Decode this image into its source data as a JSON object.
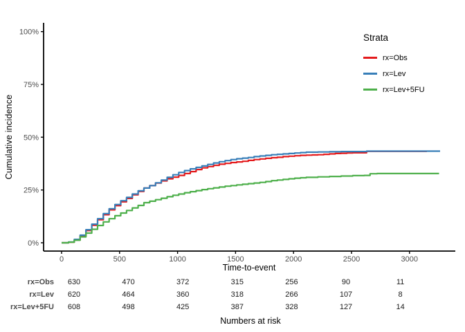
{
  "figure": {
    "y_axis_label": "Cumulative incidence",
    "x_axis_label": "Time-to-event",
    "risk_table_caption": "Numbers at risk"
  },
  "legend": {
    "title": "Strata",
    "items": [
      {
        "label": "rx=Obs",
        "color": "#E41A1C"
      },
      {
        "label": "rx=Lev",
        "color": "#377EB8"
      },
      {
        "label": "rx=Lev+5FU",
        "color": "#4DAF4A"
      }
    ]
  },
  "chart_data": {
    "type": "line",
    "step": true,
    "title": "",
    "xlabel": "Time-to-event",
    "ylabel": "Cumulative incidence",
    "xlim": [
      0,
      3300
    ],
    "ylim": [
      0,
      100
    ],
    "grid": false,
    "legend_position": "right-top",
    "axis_color": "#000000",
    "tick_label_color": "#4d4d4d",
    "xticks": [
      {
        "value": 0,
        "label": "0"
      },
      {
        "value": 500,
        "label": "500"
      },
      {
        "value": 1000,
        "label": "1000"
      },
      {
        "value": 1500,
        "label": "1500"
      },
      {
        "value": 2000,
        "label": "2000"
      },
      {
        "value": 2500,
        "label": "2500"
      },
      {
        "value": 3000,
        "label": "3000"
      }
    ],
    "yticks": [
      {
        "value": 0,
        "label": "0%"
      },
      {
        "value": 25,
        "label": "25%"
      },
      {
        "value": 50,
        "label": "50%"
      },
      {
        "value": 75,
        "label": "75%"
      },
      {
        "value": 100,
        "label": "100%"
      }
    ],
    "series": [
      {
        "name": "rx=Obs",
        "color": "#E41A1C",
        "points": [
          [
            0,
            0
          ],
          [
            60,
            0.3
          ],
          [
            110,
            1.3
          ],
          [
            160,
            3.2
          ],
          [
            210,
            5.8
          ],
          [
            260,
            8.3
          ],
          [
            310,
            10.9
          ],
          [
            360,
            13.3
          ],
          [
            410,
            15.6
          ],
          [
            460,
            17.6
          ],
          [
            510,
            19.4
          ],
          [
            560,
            21.0
          ],
          [
            610,
            22.7
          ],
          [
            660,
            24.3
          ],
          [
            710,
            25.9
          ],
          [
            760,
            27.1
          ],
          [
            810,
            28.3
          ],
          [
            860,
            29.3
          ],
          [
            910,
            30.3
          ],
          [
            960,
            31.1
          ],
          [
            1010,
            31.9
          ],
          [
            1060,
            32.8
          ],
          [
            1110,
            33.7
          ],
          [
            1160,
            34.7
          ],
          [
            1210,
            35.5
          ],
          [
            1260,
            36.1
          ],
          [
            1310,
            36.7
          ],
          [
            1360,
            37.2
          ],
          [
            1410,
            37.6
          ],
          [
            1460,
            38.0
          ],
          [
            1510,
            38.3
          ],
          [
            1560,
            38.6
          ],
          [
            1610,
            39.0
          ],
          [
            1660,
            39.4
          ],
          [
            1710,
            39.7
          ],
          [
            1760,
            40.0
          ],
          [
            1810,
            40.3
          ],
          [
            1860,
            40.5
          ],
          [
            1910,
            40.8
          ],
          [
            1960,
            41.0
          ],
          [
            2010,
            41.2
          ],
          [
            2060,
            41.4
          ],
          [
            2110,
            41.5
          ],
          [
            2160,
            41.6
          ],
          [
            2210,
            41.7
          ],
          [
            2260,
            41.9
          ],
          [
            2310,
            42.1
          ],
          [
            2360,
            42.3
          ],
          [
            2410,
            42.4
          ],
          [
            2460,
            42.5
          ],
          [
            2510,
            42.6
          ],
          [
            2630,
            43.3
          ],
          [
            3150,
            43.3
          ]
        ]
      },
      {
        "name": "rx=Lev",
        "color": "#377EB8",
        "points": [
          [
            0,
            0
          ],
          [
            60,
            0.4
          ],
          [
            110,
            1.6
          ],
          [
            160,
            3.6
          ],
          [
            210,
            6.2
          ],
          [
            260,
            8.8
          ],
          [
            310,
            11.4
          ],
          [
            360,
            13.8
          ],
          [
            410,
            16.1
          ],
          [
            460,
            18.1
          ],
          [
            510,
            19.9
          ],
          [
            560,
            21.5
          ],
          [
            610,
            23.1
          ],
          [
            660,
            24.6
          ],
          [
            710,
            25.9
          ],
          [
            760,
            27.1
          ],
          [
            810,
            28.4
          ],
          [
            860,
            29.7
          ],
          [
            910,
            31.0
          ],
          [
            960,
            32.2
          ],
          [
            1010,
            33.3
          ],
          [
            1060,
            34.2
          ],
          [
            1110,
            35.0
          ],
          [
            1160,
            35.7
          ],
          [
            1210,
            36.4
          ],
          [
            1260,
            37.1
          ],
          [
            1310,
            37.8
          ],
          [
            1360,
            38.4
          ],
          [
            1410,
            38.9
          ],
          [
            1460,
            39.4
          ],
          [
            1510,
            39.8
          ],
          [
            1560,
            40.1
          ],
          [
            1610,
            40.4
          ],
          [
            1660,
            40.8
          ],
          [
            1710,
            41.1
          ],
          [
            1760,
            41.4
          ],
          [
            1810,
            41.7
          ],
          [
            1860,
            41.9
          ],
          [
            1910,
            42.1
          ],
          [
            1960,
            42.3
          ],
          [
            2010,
            42.5
          ],
          [
            2060,
            42.7
          ],
          [
            2110,
            42.9
          ],
          [
            2210,
            43.0
          ],
          [
            2310,
            43.1
          ],
          [
            2410,
            43.2
          ],
          [
            2630,
            43.4
          ],
          [
            3264,
            43.4
          ]
        ]
      },
      {
        "name": "rx=Lev+5FU",
        "color": "#4DAF4A",
        "points": [
          [
            0,
            0
          ],
          [
            60,
            0.3
          ],
          [
            110,
            1.2
          ],
          [
            160,
            2.8
          ],
          [
            210,
            4.6
          ],
          [
            260,
            6.4
          ],
          [
            310,
            8.2
          ],
          [
            360,
            9.9
          ],
          [
            410,
            11.4
          ],
          [
            460,
            12.8
          ],
          [
            510,
            14.1
          ],
          [
            560,
            15.3
          ],
          [
            610,
            16.5
          ],
          [
            660,
            17.7
          ],
          [
            710,
            19.0
          ],
          [
            760,
            19.7
          ],
          [
            810,
            20.4
          ],
          [
            860,
            21.1
          ],
          [
            910,
            21.8
          ],
          [
            960,
            22.5
          ],
          [
            1010,
            23.1
          ],
          [
            1060,
            23.7
          ],
          [
            1110,
            24.2
          ],
          [
            1160,
            24.7
          ],
          [
            1210,
            25.2
          ],
          [
            1260,
            25.6
          ],
          [
            1310,
            26.0
          ],
          [
            1360,
            26.4
          ],
          [
            1410,
            26.8
          ],
          [
            1460,
            27.1
          ],
          [
            1510,
            27.4
          ],
          [
            1560,
            27.7
          ],
          [
            1610,
            28.0
          ],
          [
            1660,
            28.3
          ],
          [
            1710,
            28.6
          ],
          [
            1760,
            29.0
          ],
          [
            1810,
            29.4
          ],
          [
            1860,
            29.7
          ],
          [
            1910,
            30.0
          ],
          [
            1960,
            30.3
          ],
          [
            2010,
            30.6
          ],
          [
            2060,
            30.8
          ],
          [
            2110,
            31.0
          ],
          [
            2210,
            31.2
          ],
          [
            2310,
            31.4
          ],
          [
            2410,
            31.6
          ],
          [
            2510,
            31.8
          ],
          [
            2610,
            31.9
          ],
          [
            2660,
            32.7
          ],
          [
            2720,
            32.8
          ],
          [
            3255,
            32.8
          ]
        ]
      }
    ]
  },
  "risk_table": {
    "time_values": [
      0,
      500,
      1000,
      1500,
      2000,
      2500,
      3000
    ],
    "rows": [
      {
        "label": "rx=Obs",
        "counts": [
          "630",
          "470",
          "372",
          "315",
          "256",
          "90",
          "11"
        ]
      },
      {
        "label": "rx=Lev",
        "counts": [
          "620",
          "464",
          "360",
          "318",
          "266",
          "107",
          "8"
        ]
      },
      {
        "label": "rx=Lev+5FU",
        "counts": [
          "608",
          "498",
          "425",
          "387",
          "328",
          "127",
          "14"
        ]
      }
    ]
  }
}
